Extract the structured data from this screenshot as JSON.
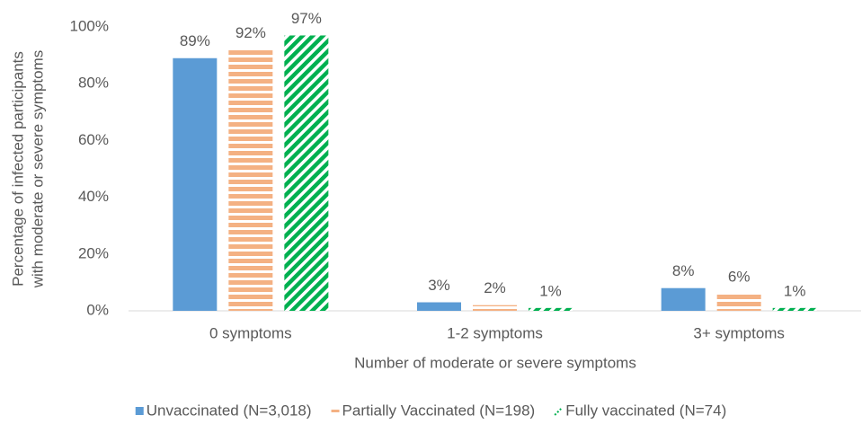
{
  "chart_data": {
    "type": "bar",
    "y_label": [
      "Percentage of infected participants",
      "with moderate or severe symptoms"
    ],
    "x_label": "Number of moderate or severe symptoms",
    "categories": [
      "0 symptoms",
      "1-2 symptoms",
      "3+ symptoms"
    ],
    "series": [
      {
        "name": "Unvaccinated (N=3,018)",
        "color": "#5b9bd5",
        "pattern": "solid",
        "values": [
          89,
          3,
          8
        ],
        "value_labels": [
          "89%",
          "3%",
          "8%"
        ]
      },
      {
        "name": "Partially Vaccinated (N=198)",
        "color": "#f4b183",
        "pattern": "horizontal",
        "values": [
          92,
          2,
          6
        ],
        "value_labels": [
          "92%",
          "2%",
          "6%"
        ]
      },
      {
        "name": "Fully vaccinated (N=74)",
        "color": "#00b050",
        "pattern": "diagonal",
        "values": [
          97,
          1,
          1
        ],
        "value_labels": [
          "97%",
          "1%",
          "1%"
        ]
      }
    ],
    "ylim": [
      0,
      100
    ],
    "yticks": [
      {
        "value": 0,
        "label": "0%"
      },
      {
        "value": 20,
        "label": "20%"
      },
      {
        "value": 40,
        "label": "40%"
      },
      {
        "value": 60,
        "label": "60%"
      },
      {
        "value": 80,
        "label": "80%"
      },
      {
        "value": 100,
        "label": "100%"
      }
    ],
    "grid": false,
    "legend": "bottom"
  }
}
